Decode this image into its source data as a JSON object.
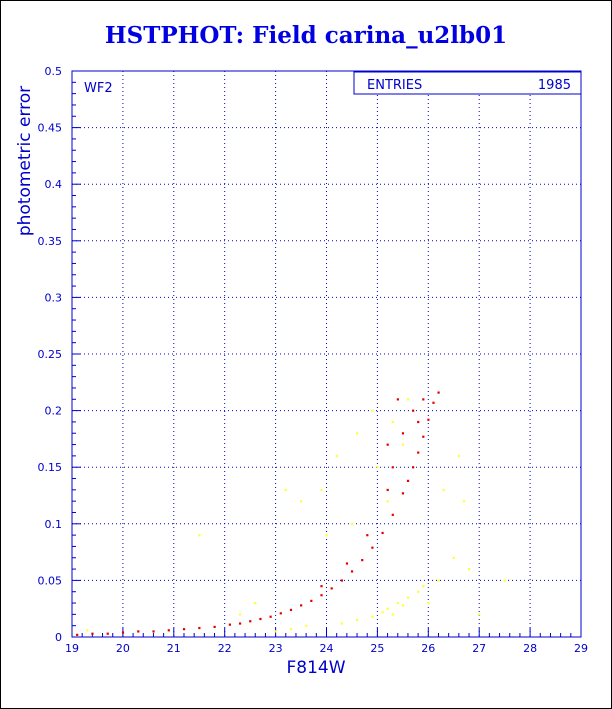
{
  "title": "HSTPHOT: Field carina_u2lb01",
  "colors": {
    "axis": "#0000cc",
    "title": "#0000e0",
    "series_main": "#e00000",
    "series_secondary": "#ffff33"
  },
  "chart_data": {
    "type": "scatter",
    "title": "HSTPHOT: Field carina_u2lb01",
    "xlabel": "F814W",
    "ylabel": "photometric error",
    "xlim": [
      19,
      29
    ],
    "ylim": [
      0,
      0.5
    ],
    "x_ticks": [
      19,
      20,
      21,
      22,
      23,
      24,
      25,
      26,
      27,
      28,
      29
    ],
    "x_tick_labels": [
      "19",
      "20",
      "21",
      "22",
      "23",
      "24",
      "25",
      "26",
      "27",
      "28",
      "29"
    ],
    "y_ticks": [
      0,
      0.05,
      0.1,
      0.15,
      0.2,
      0.25,
      0.3,
      0.35,
      0.4,
      0.45,
      0.5
    ],
    "y_tick_labels": [
      "0",
      "0.05",
      "0.1",
      "0.15",
      "0.2",
      "0.25",
      "0.3",
      "0.35",
      "0.4",
      "0.45",
      "0.5"
    ],
    "grid": true,
    "panel_label": "WF2",
    "stats": {
      "label": "ENTRIES",
      "value": "1985",
      "placement": "top-right"
    },
    "series": [
      {
        "color": "red",
        "points": [
          [
            19.1,
            0.002
          ],
          [
            19.4,
            0.003
          ],
          [
            19.7,
            0.003
          ],
          [
            20.0,
            0.004
          ],
          [
            20.3,
            0.005
          ],
          [
            20.6,
            0.005
          ],
          [
            20.9,
            0.006
          ],
          [
            21.2,
            0.007
          ],
          [
            21.5,
            0.008
          ],
          [
            21.8,
            0.009
          ],
          [
            22.1,
            0.011
          ],
          [
            22.3,
            0.012
          ],
          [
            22.5,
            0.014
          ],
          [
            22.7,
            0.016
          ],
          [
            22.9,
            0.018
          ],
          [
            23.1,
            0.021
          ],
          [
            23.3,
            0.024
          ],
          [
            23.5,
            0.028
          ],
          [
            23.7,
            0.032
          ],
          [
            23.9,
            0.037
          ],
          [
            24.1,
            0.043
          ],
          [
            24.3,
            0.05
          ],
          [
            24.5,
            0.058
          ],
          [
            24.7,
            0.068
          ],
          [
            24.9,
            0.079
          ],
          [
            25.1,
            0.092
          ],
          [
            25.3,
            0.108
          ],
          [
            25.5,
            0.127
          ],
          [
            25.6,
            0.138
          ],
          [
            25.7,
            0.15
          ],
          [
            25.8,
            0.163
          ],
          [
            25.9,
            0.177
          ],
          [
            26.0,
            0.192
          ],
          [
            26.1,
            0.207
          ],
          [
            26.2,
            0.216
          ],
          [
            25.7,
            0.2
          ],
          [
            25.5,
            0.18
          ],
          [
            25.3,
            0.15
          ],
          [
            25.2,
            0.13
          ],
          [
            25.8,
            0.19
          ],
          [
            25.9,
            0.21
          ],
          [
            25.4,
            0.21
          ],
          [
            25.2,
            0.17
          ],
          [
            24.8,
            0.09
          ],
          [
            24.4,
            0.065
          ],
          [
            23.9,
            0.045
          ]
        ]
      },
      {
        "color": "yellow",
        "points": [
          [
            19.3,
            0.006
          ],
          [
            21.5,
            0.09
          ],
          [
            22.6,
            0.03
          ],
          [
            23.0,
            0.005
          ],
          [
            23.3,
            0.007
          ],
          [
            23.6,
            0.01
          ],
          [
            23.2,
            0.13
          ],
          [
            23.5,
            0.12
          ],
          [
            23.9,
            0.13
          ],
          [
            24.3,
            0.012
          ],
          [
            24.6,
            0.015
          ],
          [
            24.2,
            0.16
          ],
          [
            24.5,
            0.1
          ],
          [
            24.6,
            0.18
          ],
          [
            24.9,
            0.018
          ],
          [
            24.9,
            0.2
          ],
          [
            25.0,
            0.15
          ],
          [
            25.1,
            0.022
          ],
          [
            25.2,
            0.025
          ],
          [
            25.3,
            0.02
          ],
          [
            25.4,
            0.03
          ],
          [
            25.5,
            0.028
          ],
          [
            25.6,
            0.035
          ],
          [
            25.8,
            0.04
          ],
          [
            25.9,
            0.045
          ],
          [
            26.0,
            0.03
          ],
          [
            25.3,
            0.19
          ],
          [
            25.5,
            0.17
          ],
          [
            25.6,
            0.21
          ],
          [
            26.2,
            0.05
          ],
          [
            26.3,
            0.13
          ],
          [
            26.5,
            0.07
          ],
          [
            26.6,
            0.16
          ],
          [
            26.7,
            0.12
          ],
          [
            26.8,
            0.06
          ],
          [
            27.0,
            0.02
          ],
          [
            27.5,
            0.05
          ],
          [
            25.2,
            0.12
          ],
          [
            24.0,
            0.09
          ],
          [
            22.3,
            0.02
          ]
        ]
      }
    ]
  }
}
